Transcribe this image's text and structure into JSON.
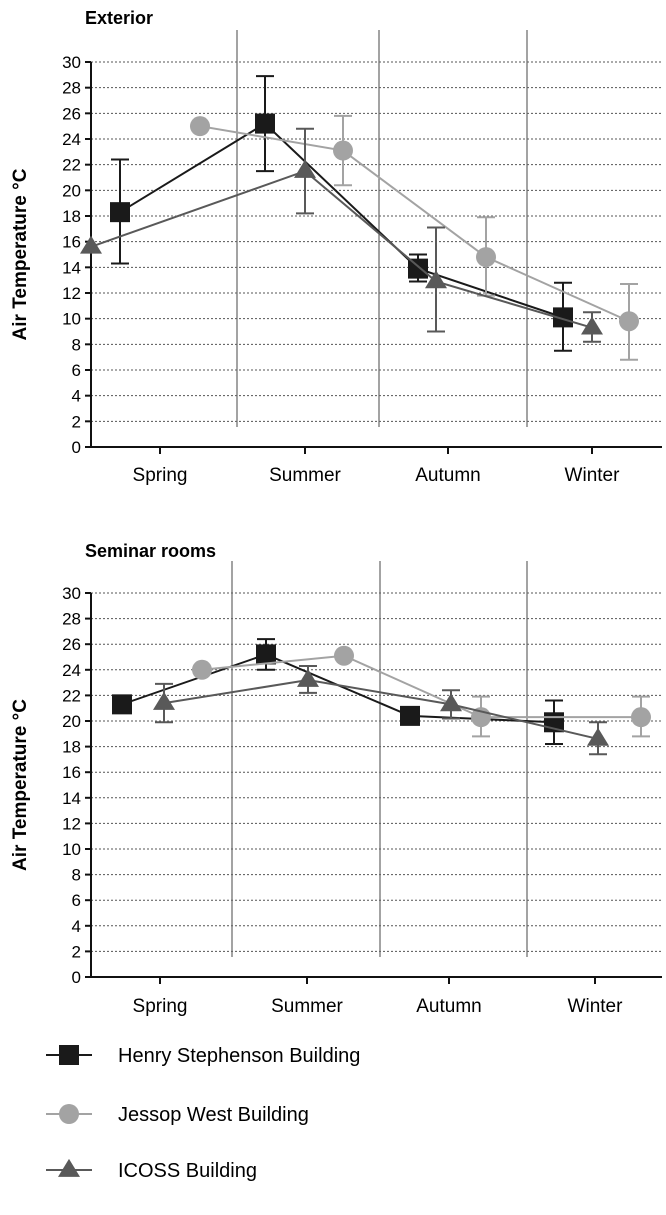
{
  "chart_data": [
    {
      "type": "line",
      "title": "Exterior",
      "xlabel": "",
      "ylabel": "Air Temperature °C",
      "ylim": [
        0,
        30
      ],
      "yticks": [
        0,
        2,
        4,
        6,
        8,
        10,
        12,
        14,
        16,
        18,
        20,
        22,
        24,
        26,
        28,
        30
      ],
      "categories": [
        "Spring",
        "Summer",
        "Autumn",
        "Winter"
      ],
      "grid": "horizontal dotted",
      "series": [
        {
          "name": "Henry Stephenson Building",
          "color": "#1a1a1a",
          "marker": "square",
          "values": [
            18.3,
            25.2,
            13.9,
            10.1
          ],
          "error_low": [
            14.3,
            21.5,
            12.9,
            7.5
          ],
          "error_high": [
            22.4,
            28.9,
            15.0,
            12.8
          ]
        },
        {
          "name": "Jessop West Building",
          "color": "#a3a3a3",
          "marker": "circle",
          "values": [
            25.0,
            23.1,
            14.8,
            9.8
          ],
          "error_low": [
            null,
            20.4,
            11.8,
            6.8
          ],
          "error_high": [
            null,
            25.8,
            17.9,
            12.7
          ]
        },
        {
          "name": "ICOSS Building",
          "color": "#595959",
          "marker": "triangle",
          "values": [
            15.6,
            21.5,
            12.9,
            9.3
          ],
          "error_low": [
            null,
            18.2,
            9.0,
            8.2
          ],
          "error_high": [
            null,
            24.8,
            17.1,
            10.5
          ]
        }
      ]
    },
    {
      "type": "line",
      "title": "Seminar rooms",
      "xlabel": "",
      "ylabel": "Air Temperature °C",
      "ylim": [
        0,
        30
      ],
      "yticks": [
        0,
        2,
        4,
        6,
        8,
        10,
        12,
        14,
        16,
        18,
        20,
        22,
        24,
        26,
        28,
        30
      ],
      "categories": [
        "Spring",
        "Summer",
        "Autumn",
        "Winter"
      ],
      "grid": "horizontal dotted",
      "series": [
        {
          "name": "Henry Stephenson Building",
          "color": "#1a1a1a",
          "marker": "square",
          "values": [
            21.3,
            25.2,
            20.4,
            19.9
          ],
          "error_low": [
            null,
            24.0,
            null,
            18.2
          ],
          "error_high": [
            null,
            26.4,
            null,
            21.6
          ]
        },
        {
          "name": "Jessop West Building",
          "color": "#a3a3a3",
          "marker": "circle",
          "values": [
            24.0,
            25.1,
            20.3,
            20.3
          ],
          "error_low": [
            null,
            null,
            18.8,
            18.8
          ],
          "error_high": [
            null,
            null,
            21.9,
            21.9
          ]
        },
        {
          "name": "ICOSS Building",
          "color": "#595959",
          "marker": "triangle",
          "values": [
            21.4,
            23.2,
            21.3,
            18.6
          ],
          "error_low": [
            19.9,
            22.2,
            20.2,
            17.4
          ],
          "error_high": [
            22.9,
            24.3,
            22.4,
            19.9
          ]
        }
      ]
    }
  ],
  "legend": {
    "placement": "bottom",
    "items": [
      {
        "label": "Henry Stephenson Building",
        "marker": "square",
        "color": "#1a1a1a"
      },
      {
        "label": "Jessop West Building",
        "marker": "circle",
        "color": "#a3a3a3"
      },
      {
        "label": "ICOSS Building",
        "marker": "triangle",
        "color": "#595959"
      }
    ]
  }
}
